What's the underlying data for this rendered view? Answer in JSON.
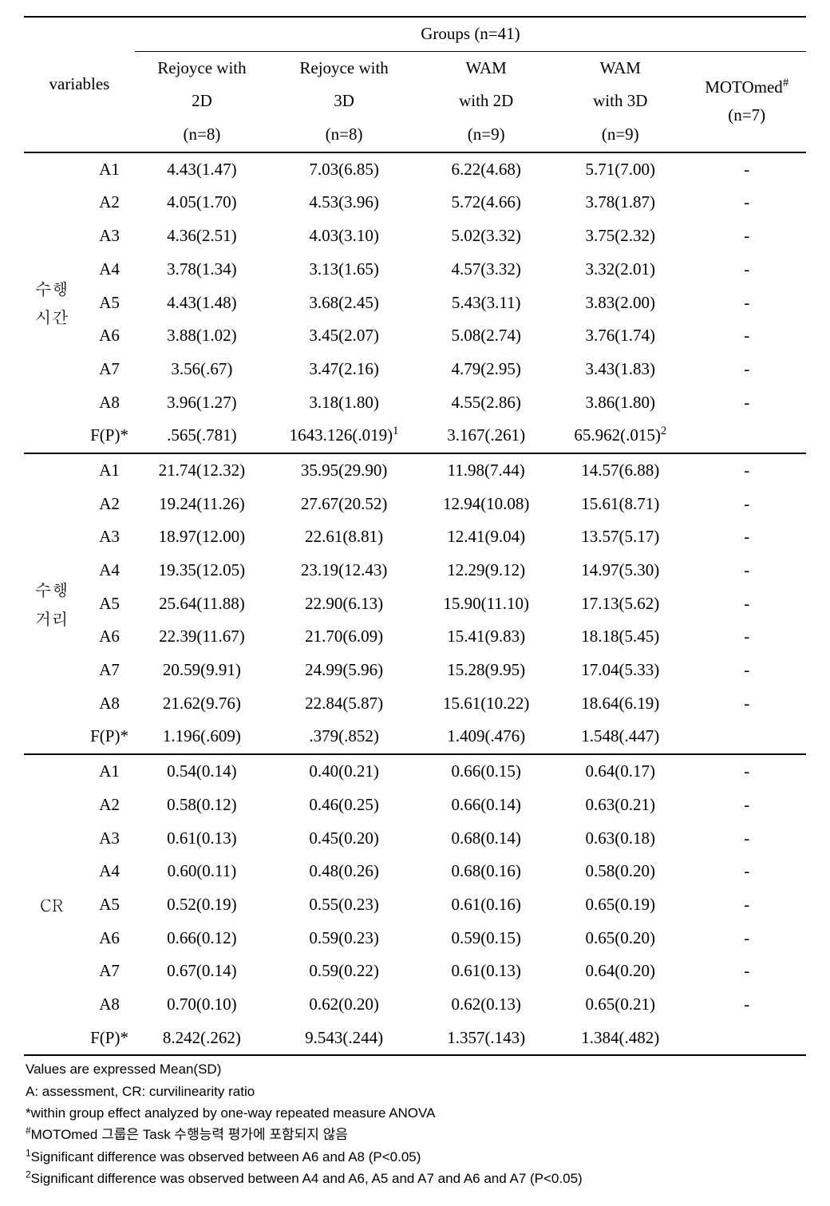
{
  "header": {
    "groups_label": "Groups (n=41)",
    "variables_label": "variables",
    "columns": [
      {
        "l1": "Rejoyce with",
        "l2": "2D",
        "l3": "(n=8)"
      },
      {
        "l1": "Rejoyce with",
        "l2": "3D",
        "l3": "(n=8)"
      },
      {
        "l1": "WAM",
        "l2": "with 2D",
        "l3": "(n=9)"
      },
      {
        "l1": "WAM",
        "l2": "with 3D",
        "l3": "(n=9)"
      }
    ],
    "motomed": {
      "l1": "MOTOmed",
      "sup": "#",
      "l2": "(n=7)"
    }
  },
  "sections": [
    {
      "label": "수행\n시간",
      "rows": [
        {
          "sub": "A1",
          "c": [
            "4.43(1.47)",
            "7.03(6.85)",
            "6.22(4.68)",
            "5.71(7.00)"
          ],
          "m": "-"
        },
        {
          "sub": "A2",
          "c": [
            "4.05(1.70)",
            "4.53(3.96)",
            "5.72(4.66)",
            "3.78(1.87)"
          ],
          "m": "-"
        },
        {
          "sub": "A3",
          "c": [
            "4.36(2.51)",
            "4.03(3.10)",
            "5.02(3.32)",
            "3.75(2.32)"
          ],
          "m": "-"
        },
        {
          "sub": "A4",
          "c": [
            "3.78(1.34)",
            "3.13(1.65)",
            "4.57(3.32)",
            "3.32(2.01)"
          ],
          "m": "-"
        },
        {
          "sub": "A5",
          "c": [
            "4.43(1.48)",
            "3.68(2.45)",
            "5.43(3.11)",
            "3.83(2.00)"
          ],
          "m": "-"
        },
        {
          "sub": "A6",
          "c": [
            "3.88(1.02)",
            "3.45(2.07)",
            "5.08(2.74)",
            "3.76(1.74)"
          ],
          "m": "-"
        },
        {
          "sub": "A7",
          "c": [
            "3.56(.67)",
            "3.47(2.16)",
            "4.79(2.95)",
            "3.43(1.83)"
          ],
          "m": "-"
        },
        {
          "sub": "A8",
          "c": [
            "3.96(1.27)",
            "3.18(1.80)",
            "4.55(2.86)",
            "3.86(1.80)"
          ],
          "m": "-"
        }
      ],
      "frow": {
        "sub": "F(P)*",
        "c": [
          {
            "val": ".565(.781)",
            "sup": ""
          },
          {
            "val": "1643.126(.019)",
            "sup": "1"
          },
          {
            "val": "3.167(.261)",
            "sup": ""
          },
          {
            "val": "65.962(.015)",
            "sup": "2"
          }
        ],
        "m": ""
      }
    },
    {
      "label": "수행\n거리",
      "rows": [
        {
          "sub": "A1",
          "c": [
            "21.74(12.32)",
            "35.95(29.90)",
            "11.98(7.44)",
            "14.57(6.88)"
          ],
          "m": "-"
        },
        {
          "sub": "A2",
          "c": [
            "19.24(11.26)",
            "27.67(20.52)",
            "12.94(10.08)",
            "15.61(8.71)"
          ],
          "m": "-"
        },
        {
          "sub": "A3",
          "c": [
            "18.97(12.00)",
            "22.61(8.81)",
            "12.41(9.04)",
            "13.57(5.17)"
          ],
          "m": "-"
        },
        {
          "sub": "A4",
          "c": [
            "19.35(12.05)",
            "23.19(12.43)",
            "12.29(9.12)",
            "14.97(5.30)"
          ],
          "m": "-"
        },
        {
          "sub": "A5",
          "c": [
            "25.64(11.88)",
            "22.90(6.13)",
            "15.90(11.10)",
            "17.13(5.62)"
          ],
          "m": "-"
        },
        {
          "sub": "A6",
          "c": [
            "22.39(11.67)",
            "21.70(6.09)",
            "15.41(9.83)",
            "18.18(5.45)"
          ],
          "m": "-"
        },
        {
          "sub": "A7",
          "c": [
            "20.59(9.91)",
            "24.99(5.96)",
            "15.28(9.95)",
            "17.04(5.33)"
          ],
          "m": "-"
        },
        {
          "sub": "A8",
          "c": [
            "21.62(9.76)",
            "22.84(5.87)",
            "15.61(10.22)",
            "18.64(6.19)"
          ],
          "m": "-"
        }
      ],
      "frow": {
        "sub": "F(P)*",
        "c": [
          {
            "val": "1.196(.609)",
            "sup": ""
          },
          {
            "val": ".379(.852)",
            "sup": ""
          },
          {
            "val": "1.409(.476)",
            "sup": ""
          },
          {
            "val": "1.548(.447)",
            "sup": ""
          }
        ],
        "m": ""
      }
    },
    {
      "label": "CR",
      "rows": [
        {
          "sub": "A1",
          "c": [
            "0.54(0.14)",
            "0.40(0.21)",
            "0.66(0.15)",
            "0.64(0.17)"
          ],
          "m": "-"
        },
        {
          "sub": "A2",
          "c": [
            "0.58(0.12)",
            "0.46(0.25)",
            "0.66(0.14)",
            "0.63(0.21)"
          ],
          "m": "-"
        },
        {
          "sub": "A3",
          "c": [
            "0.61(0.13)",
            "0.45(0.20)",
            "0.68(0.14)",
            "0.63(0.18)"
          ],
          "m": "-"
        },
        {
          "sub": "A4",
          "c": [
            "0.60(0.11)",
            "0.48(0.26)",
            "0.68(0.16)",
            "0.58(0.20)"
          ],
          "m": "-"
        },
        {
          "sub": "A5",
          "c": [
            "0.52(0.19)",
            "0.55(0.23)",
            "0.61(0.16)",
            "0.65(0.19)"
          ],
          "m": "-"
        },
        {
          "sub": "A6",
          "c": [
            "0.66(0.12)",
            "0.59(0.23)",
            "0.59(0.15)",
            "0.65(0.20)"
          ],
          "m": "-"
        },
        {
          "sub": "A7",
          "c": [
            "0.67(0.14)",
            "0.59(0.22)",
            "0.61(0.13)",
            "0.64(0.20)"
          ],
          "m": "-"
        },
        {
          "sub": "A8",
          "c": [
            "0.70(0.10)",
            "0.62(0.20)",
            "0.62(0.13)",
            "0.65(0.21)"
          ],
          "m": "-"
        }
      ],
      "frow": {
        "sub": "F(P)*",
        "c": [
          {
            "val": "8.242(.262)",
            "sup": ""
          },
          {
            "val": "9.543(.244)",
            "sup": ""
          },
          {
            "val": "1.357(.143)",
            "sup": ""
          },
          {
            "val": "1.384(.482)",
            "sup": ""
          }
        ],
        "m": ""
      }
    }
  ],
  "footnotes": [
    "Values are expressed Mean(SD)",
    "A: assessment, CR: curvilinearity ratio",
    "*within group effect analyzed by one-way repeated measure ANOVA",
    "#MOTOmed 그룹은 Task 수행능력 평가에 포함되지 않음",
    "1Significant difference was observed between A6 and A8 (P<0.05)",
    "2Significant difference was observed between A4 and A6, A5 and A7 and A6 and A7 (P<0.05)"
  ],
  "footnote_leadsup": [
    "",
    "",
    "",
    "",
    "",
    ""
  ],
  "footnote_render": [
    {
      "pre": "",
      "txt": "Values are expressed Mean(SD)"
    },
    {
      "pre": "",
      "txt": "A: assessment, CR: curvilinearity ratio"
    },
    {
      "pre": "",
      "txt": "*within group effect analyzed by one-way repeated measure ANOVA"
    },
    {
      "pre": "#",
      "txt": "MOTOmed 그룹은 Task 수행능력 평가에 포함되지 않음"
    },
    {
      "pre": "1",
      "txt": "Significant difference was observed between A6 and A8 (P<0.05)"
    },
    {
      "pre": "2",
      "txt": "Significant difference was observed between A4 and A6, A5 and A7 and A6 and A7 (P<0.05)"
    }
  ]
}
